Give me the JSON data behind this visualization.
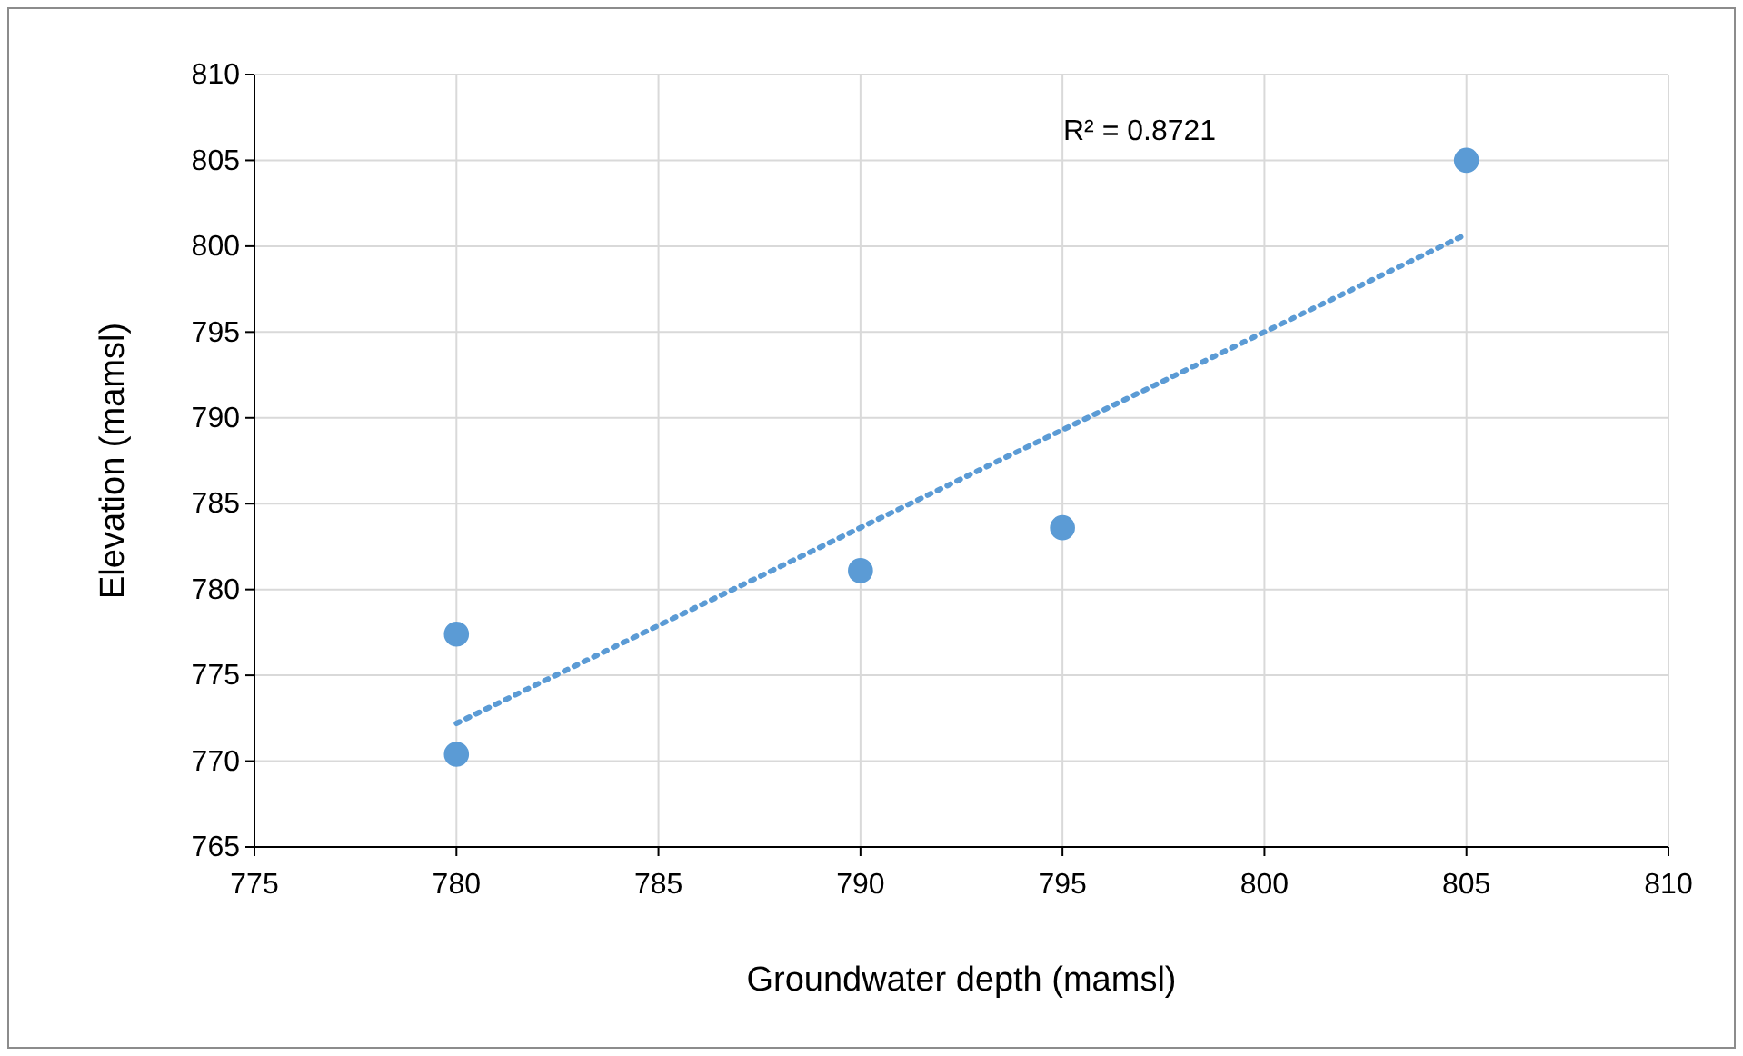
{
  "chart_data": {
    "type": "scatter",
    "xlabel": "Groundwater depth (mamsl)",
    "ylabel": "Elevation (mamsl)",
    "annotations": [
      "R² = 0.8721"
    ],
    "xlim": [
      775,
      810
    ],
    "xticks": [
      775,
      780,
      785,
      790,
      795,
      800,
      805,
      810
    ],
    "ylim": [
      765,
      810
    ],
    "yticks": [
      765,
      770,
      775,
      780,
      785,
      790,
      795,
      800,
      805,
      810
    ],
    "grid": true,
    "marker": "circle",
    "series": [
      {
        "color": "#5b9bd5",
        "x": [
          780,
          780,
          790,
          795,
          805
        ],
        "values": [
          777.4,
          770.4,
          781.1,
          783.6,
          805.0
        ]
      },
      {
        "type": "line",
        "color": "#5b9bd5",
        "line_style": "dotted",
        "marker": "none",
        "x": [
          780,
          805
        ],
        "values": [
          772.2,
          800.7
        ]
      }
    ]
  }
}
